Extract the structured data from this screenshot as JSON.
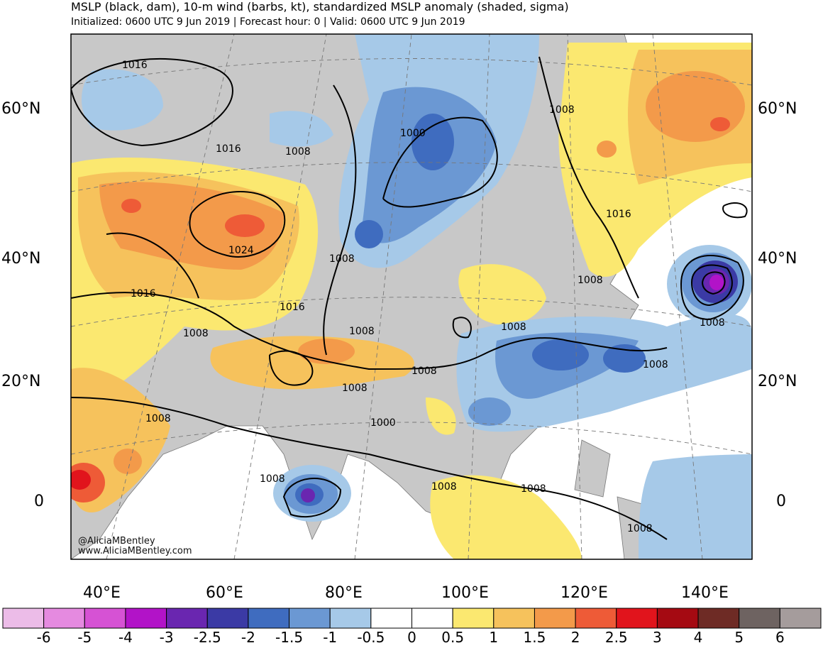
{
  "header": {
    "title": "MSLP (black, dam), 10-m wind (barbs, kt), standardized MSLP anomaly (shaded, sigma)",
    "subtitle": "Initialized: 0600 UTC 9 Jun 2019 | Forecast hour: 0 | Valid: 0600 UTC 9 Jun 2019"
  },
  "map": {
    "lat_labels": [
      "60°N",
      "40°N",
      "20°N",
      "0"
    ],
    "lon_labels": [
      "40°E",
      "60°E",
      "80°E",
      "100°E",
      "120°E",
      "140°E"
    ],
    "contour_labels": [
      "1016",
      "1016",
      "1024",
      "1016",
      "1016",
      "1008",
      "1008",
      "1000",
      "1008",
      "1008",
      "1008",
      "1008",
      "1008",
      "1008",
      "1000",
      "1008",
      "1008",
      "1008",
      "1008",
      "1008",
      "1008",
      "1016"
    ]
  },
  "credits": {
    "handle": "@AliciaMBentley",
    "website": "www.AliciaMBentley.com"
  },
  "colorbar": {
    "labels": [
      "-6",
      "-5",
      "-4",
      "-3",
      "-2.5",
      "-2",
      "-1.5",
      "-1",
      "-0.5",
      "0",
      "0.5",
      "1",
      "1.5",
      "2",
      "2.5",
      "3",
      "4",
      "5",
      "6"
    ],
    "colors": [
      "#ecbce8",
      "#e58ae0",
      "#d652d4",
      "#b213c8",
      "#6a26b0",
      "#3b3aa5",
      "#3f6cbf",
      "#6b98d3",
      "#a6c9e8",
      "#ffffff",
      "#ffffff",
      "#fbe870",
      "#f6c25c",
      "#f39a4a",
      "#ee5b37",
      "#e1141c",
      "#a50a12",
      "#6e2b25",
      "#6e6361",
      "#a59c9c"
    ]
  },
  "legend_colors": {
    "land": "#c8c8c8",
    "ocean": "#ffffff"
  }
}
